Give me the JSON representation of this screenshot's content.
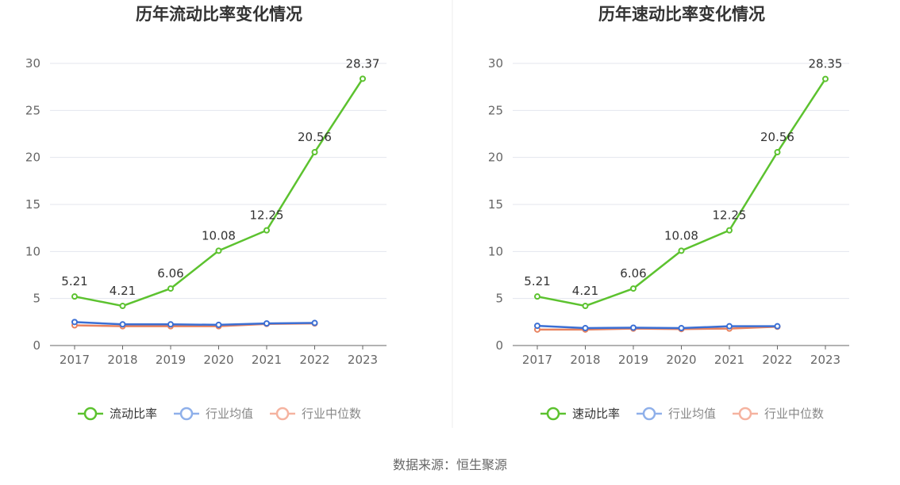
{
  "chart_data": [
    {
      "type": "line",
      "title": "历年流动比率变化情况",
      "categories": [
        "2017",
        "2018",
        "2019",
        "2020",
        "2021",
        "2022",
        "2023"
      ],
      "ylim": [
        0,
        30
      ],
      "yticks": [
        "0",
        "5",
        "10",
        "15",
        "20",
        "25",
        "30"
      ],
      "grid": true,
      "legend_position": "bottom",
      "series": [
        {
          "name": "流动比率",
          "color": "#5cc22f",
          "values": [
            5.21,
            4.21,
            6.06,
            10.08,
            12.25,
            20.56,
            28.37
          ],
          "labels": [
            "5.21",
            "4.21",
            "6.06",
            "10.08",
            "12.25",
            "20.56",
            "28.37"
          ]
        },
        {
          "name": "行业均值",
          "color": "#3b6fd4",
          "values": [
            2.5,
            2.25,
            2.25,
            2.2,
            2.35,
            2.4,
            null
          ]
        },
        {
          "name": "行业中位数",
          "color": "#e8825f",
          "values": [
            2.15,
            2.05,
            2.05,
            2.05,
            2.3,
            2.35,
            null
          ]
        }
      ]
    },
    {
      "type": "line",
      "title": "历年速动比率变化情况",
      "categories": [
        "2017",
        "2018",
        "2019",
        "2020",
        "2021",
        "2022",
        "2023"
      ],
      "ylim": [
        0,
        30
      ],
      "yticks": [
        "0",
        "5",
        "10",
        "15",
        "20",
        "25",
        "30"
      ],
      "grid": true,
      "legend_position": "bottom",
      "series": [
        {
          "name": "速动比率",
          "color": "#5cc22f",
          "values": [
            5.21,
            4.21,
            6.06,
            10.08,
            12.25,
            20.56,
            28.35
          ],
          "labels": [
            "5.21",
            "4.21",
            "6.06",
            "10.08",
            "12.25",
            "20.56",
            "28.35"
          ]
        },
        {
          "name": "行业均值",
          "color": "#3b6fd4",
          "values": [
            2.1,
            1.85,
            1.9,
            1.85,
            2.05,
            2.05,
            null
          ]
        },
        {
          "name": "行业中位数",
          "color": "#e8825f",
          "values": [
            1.7,
            1.7,
            1.8,
            1.75,
            1.8,
            2.0,
            null
          ]
        }
      ]
    }
  ],
  "legend_colors": {
    "primary": "#5cc22f",
    "avg": "#8fb0ea",
    "median": "#f5b3a0"
  },
  "source_text": "数据来源：恒生聚源"
}
